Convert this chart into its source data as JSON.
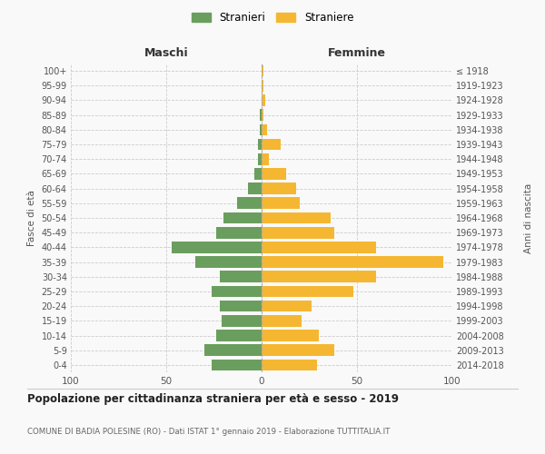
{
  "age_groups": [
    "0-4",
    "5-9",
    "10-14",
    "15-19",
    "20-24",
    "25-29",
    "30-34",
    "35-39",
    "40-44",
    "45-49",
    "50-54",
    "55-59",
    "60-64",
    "65-69",
    "70-74",
    "75-79",
    "80-84",
    "85-89",
    "90-94",
    "95-99",
    "100+"
  ],
  "birth_years": [
    "2014-2018",
    "2009-2013",
    "2004-2008",
    "1999-2003",
    "1994-1998",
    "1989-1993",
    "1984-1988",
    "1979-1983",
    "1974-1978",
    "1969-1973",
    "1964-1968",
    "1959-1963",
    "1954-1958",
    "1949-1953",
    "1944-1948",
    "1939-1943",
    "1934-1938",
    "1929-1933",
    "1924-1928",
    "1919-1923",
    "≤ 1918"
  ],
  "maschi": [
    26,
    30,
    24,
    21,
    22,
    26,
    22,
    35,
    47,
    24,
    20,
    13,
    7,
    4,
    2,
    2,
    1,
    1,
    0,
    0,
    0
  ],
  "femmine": [
    29,
    38,
    30,
    21,
    26,
    48,
    60,
    95,
    60,
    38,
    36,
    20,
    18,
    13,
    4,
    10,
    3,
    1,
    2,
    1,
    1
  ],
  "color_maschi": "#6a9e5e",
  "color_femmine": "#f5b731",
  "title": "Popolazione per cittadinanza straniera per età e sesso - 2019",
  "subtitle": "COMUNE DI BADIA POLESINE (RO) - Dati ISTAT 1° gennaio 2019 - Elaborazione TUTTITALIA.IT",
  "xlabel_left": "Maschi",
  "xlabel_right": "Femmine",
  "ylabel_left": "Fasce di età",
  "ylabel_right": "Anni di nascita",
  "legend_maschi": "Stranieri",
  "legend_femmine": "Straniere",
  "xlim": 100,
  "background_color": "#f9f9f9",
  "grid_color": "#cccccc"
}
